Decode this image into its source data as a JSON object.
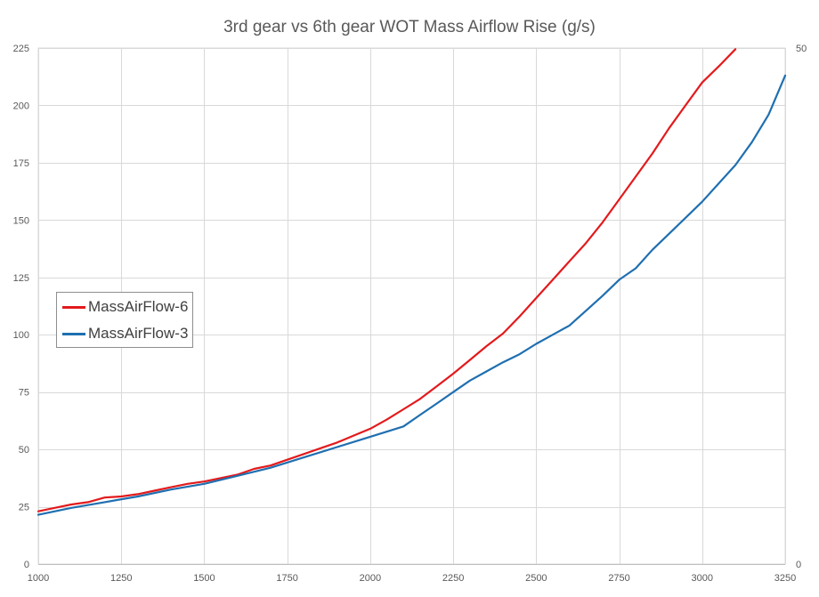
{
  "chart_data": {
    "type": "line",
    "title": "3rd gear vs 6th gear WOT Mass Airflow Rise (g/s)",
    "xlabel": "",
    "ylabel": "",
    "xlim": [
      1000,
      3250
    ],
    "ylim": [
      0,
      225
    ],
    "y2lim": [
      0,
      50
    ],
    "x_ticks": [
      1000,
      1250,
      1500,
      1750,
      2000,
      2250,
      2500,
      2750,
      3000,
      3250
    ],
    "y_ticks": [
      0,
      25,
      50,
      75,
      100,
      125,
      150,
      175,
      200,
      225
    ],
    "y2_ticks": [
      0,
      50
    ],
    "grid": true,
    "legend_position": "left-middle",
    "series": [
      {
        "name": "MassAirFlow-6",
        "color": "#e31a1c",
        "points": [
          [
            1000,
            23
          ],
          [
            1050,
            24.5
          ],
          [
            1100,
            26
          ],
          [
            1150,
            27
          ],
          [
            1200,
            29
          ],
          [
            1250,
            29.5
          ],
          [
            1300,
            30.5
          ],
          [
            1350,
            32
          ],
          [
            1400,
            33.5
          ],
          [
            1450,
            35
          ],
          [
            1500,
            36
          ],
          [
            1550,
            37.5
          ],
          [
            1600,
            39
          ],
          [
            1650,
            41.5
          ],
          [
            1700,
            43
          ],
          [
            1750,
            45.5
          ],
          [
            1800,
            48
          ],
          [
            1850,
            50.5
          ],
          [
            1900,
            53
          ],
          [
            1950,
            56
          ],
          [
            2000,
            59
          ],
          [
            2050,
            63
          ],
          [
            2100,
            67.5
          ],
          [
            2150,
            72
          ],
          [
            2200,
            77.5
          ],
          [
            2250,
            83
          ],
          [
            2300,
            89
          ],
          [
            2350,
            95
          ],
          [
            2400,
            100.5
          ],
          [
            2450,
            108
          ],
          [
            2500,
            116
          ],
          [
            2550,
            124
          ],
          [
            2600,
            132
          ],
          [
            2650,
            140
          ],
          [
            2700,
            149
          ],
          [
            2750,
            159
          ],
          [
            2800,
            169
          ],
          [
            2850,
            179
          ],
          [
            2900,
            190
          ],
          [
            2950,
            200
          ],
          [
            3000,
            210
          ],
          [
            3050,
            217
          ],
          [
            3100,
            224.5
          ]
        ]
      },
      {
        "name": "MassAirFlow-3",
        "color": "#1f6fb0",
        "points": [
          [
            1000,
            21.5
          ],
          [
            1100,
            24.5
          ],
          [
            1200,
            27
          ],
          [
            1300,
            29.5
          ],
          [
            1400,
            32.5
          ],
          [
            1500,
            35
          ],
          [
            1600,
            38.5
          ],
          [
            1700,
            42
          ],
          [
            1800,
            46.5
          ],
          [
            1900,
            51
          ],
          [
            2000,
            55.5
          ],
          [
            2100,
            60
          ],
          [
            2150,
            65
          ],
          [
            2200,
            70
          ],
          [
            2250,
            75
          ],
          [
            2300,
            80
          ],
          [
            2350,
            84
          ],
          [
            2400,
            88
          ],
          [
            2450,
            91.5
          ],
          [
            2500,
            96
          ],
          [
            2550,
            100
          ],
          [
            2600,
            104
          ],
          [
            2650,
            110.5
          ],
          [
            2700,
            117
          ],
          [
            2750,
            124
          ],
          [
            2800,
            129
          ],
          [
            2850,
            137
          ],
          [
            2900,
            144
          ],
          [
            2950,
            151
          ],
          [
            3000,
            158
          ],
          [
            3050,
            166
          ],
          [
            3100,
            174
          ],
          [
            3150,
            184
          ],
          [
            3200,
            196
          ],
          [
            3250,
            213
          ]
        ]
      }
    ]
  }
}
